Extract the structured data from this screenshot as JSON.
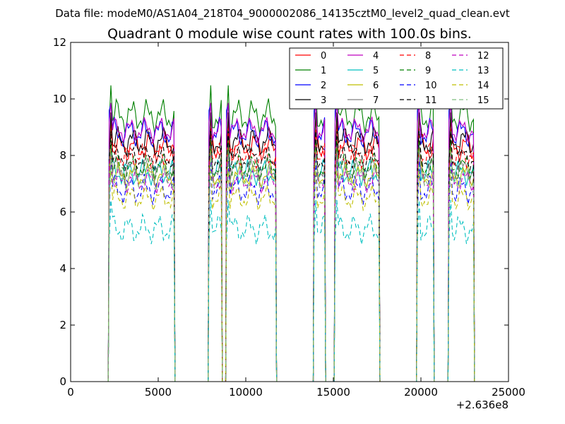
{
  "chart_data": {
    "type": "line",
    "suptitle": "Data file: modeM0/AS1A04_218T04_9000002086_14135cztM0_level2_quad_clean.evt",
    "title": "Quadrant 0 module wise count rates with 100.0s bins.",
    "xlabel": "",
    "ylabel": "",
    "x_offset_label": "+2.636e8",
    "xlim": [
      0,
      25000
    ],
    "ylim": [
      0,
      12
    ],
    "xticks": [
      0,
      5000,
      10000,
      15000,
      20000,
      25000
    ],
    "xtick_labels": [
      "0",
      "5000",
      "10000",
      "15000",
      "20000",
      "25000"
    ],
    "yticks": [
      0,
      2,
      4,
      6,
      8,
      10,
      12
    ],
    "ytick_labels": [
      "0",
      "2",
      "4",
      "6",
      "8",
      "10",
      "12"
    ],
    "grid": false,
    "legend_position": "top-right",
    "segments": [
      {
        "x": [
          2200,
          2300,
          2400,
          2500,
          2600,
          2700,
          2800,
          2900,
          3000,
          3100,
          3200,
          3300,
          3400,
          3500,
          3600,
          3700,
          3800,
          3900,
          4000,
          4100,
          4200,
          4300,
          4400,
          4500,
          4600,
          4700,
          4800,
          4900,
          5000,
          5100,
          5200,
          5300,
          5400,
          5500,
          5600,
          5700,
          5800,
          5900
        ]
      },
      {
        "x": [
          7900,
          8000,
          8100,
          8200,
          8300,
          8400,
          8500,
          8600
        ]
      },
      {
        "x": [
          8900,
          9000,
          9100,
          9200,
          9300,
          9400,
          9500,
          9600,
          9700,
          9800,
          9900,
          10000,
          10100,
          10200,
          10300,
          10400,
          10500,
          10600,
          10700,
          10800,
          10900,
          11000,
          11100,
          11200,
          11300,
          11400,
          11500,
          11600,
          11700
        ]
      },
      {
        "x": [
          13900,
          14000,
          14100,
          14200,
          14300,
          14400,
          14500
        ]
      },
      {
        "x": [
          15100,
          15200,
          15300,
          15400,
          15500,
          15600,
          15700,
          15800,
          15900,
          16000,
          16100,
          16200,
          16300,
          16400,
          16500,
          16600,
          16700,
          16800,
          16900,
          17000,
          17100,
          17200,
          17300,
          17400,
          17500,
          17600
        ]
      },
      {
        "x": [
          19800,
          19900,
          20000,
          20100,
          20200,
          20300,
          20400,
          20500,
          20600,
          20700
        ]
      },
      {
        "x": [
          21600,
          21700,
          21800,
          21900,
          22000,
          22100,
          22200,
          22300,
          22400,
          22500,
          22600,
          22700,
          22800,
          22900,
          23000
        ]
      }
    ],
    "series": [
      {
        "name": "0",
        "color": "#ff0000",
        "dash": "solid",
        "level": 8.3,
        "amp": 0.35,
        "phase": 0.0
      },
      {
        "name": "1",
        "color": "#008000",
        "dash": "solid",
        "level": 9.4,
        "amp": 0.4,
        "phase": 1.1
      },
      {
        "name": "2",
        "color": "#0000ff",
        "dash": "solid",
        "level": 8.8,
        "amp": 0.35,
        "phase": 2.3
      },
      {
        "name": "3",
        "color": "#000000",
        "dash": "solid",
        "level": 8.5,
        "amp": 0.35,
        "phase": 0.7
      },
      {
        "name": "4",
        "color": "#bf00bf",
        "dash": "solid",
        "level": 8.9,
        "amp": 0.3,
        "phase": 1.9
      },
      {
        "name": "5",
        "color": "#00bfbf",
        "dash": "solid",
        "level": 7.4,
        "amp": 0.3,
        "phase": 2.9
      },
      {
        "name": "6",
        "color": "#bfbf00",
        "dash": "solid",
        "level": 7.3,
        "amp": 0.3,
        "phase": 0.4
      },
      {
        "name": "7",
        "color": "#808080",
        "dash": "solid",
        "level": 7.5,
        "amp": 0.3,
        "phase": 1.5
      },
      {
        "name": "8",
        "color": "#ff0000",
        "dash": "dashed",
        "level": 8.0,
        "amp": 0.3,
        "phase": 2.6
      },
      {
        "name": "9",
        "color": "#008000",
        "dash": "dashed",
        "level": 7.6,
        "amp": 0.3,
        "phase": 0.9
      },
      {
        "name": "10",
        "color": "#0000ff",
        "dash": "dashed",
        "level": 6.8,
        "amp": 0.35,
        "phase": 2.1
      },
      {
        "name": "11",
        "color": "#000000",
        "dash": "dashed",
        "level": 7.9,
        "amp": 0.3,
        "phase": 1.3
      },
      {
        "name": "12",
        "color": "#bf00bf",
        "dash": "dashed",
        "level": 7.1,
        "amp": 0.3,
        "phase": 0.2
      },
      {
        "name": "13",
        "color": "#00bfbf",
        "dash": "dashed",
        "level": 5.4,
        "amp": 0.35,
        "phase": 2.7
      },
      {
        "name": "14",
        "color": "#bfbf00",
        "dash": "dashed",
        "level": 6.5,
        "amp": 0.3,
        "phase": 1.7
      },
      {
        "name": "15",
        "color": "#7fbf7f",
        "dash": "dashed",
        "level": 7.2,
        "amp": 0.3,
        "phase": 0.6
      }
    ]
  }
}
